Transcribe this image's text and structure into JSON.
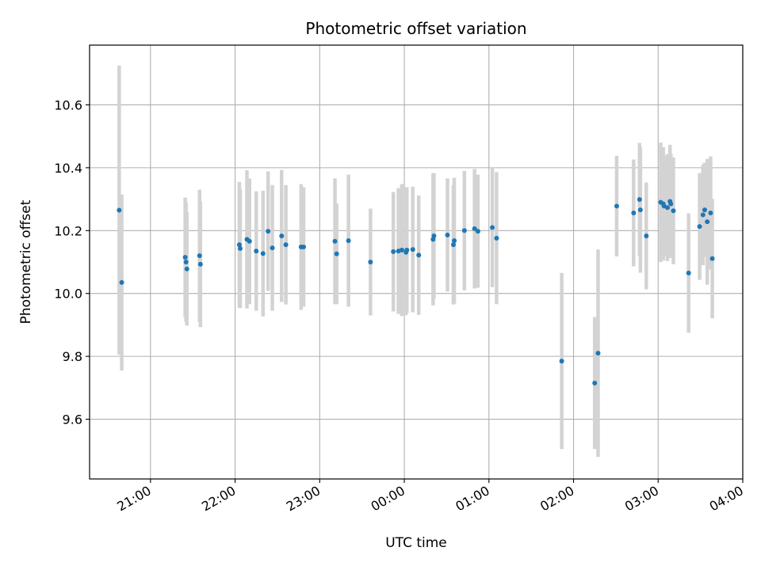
{
  "chart_data": {
    "type": "scatter",
    "title": "Photometric offset variation",
    "xlabel": "UTC time",
    "ylabel": "Photometric offset",
    "x_ticks": [
      "21:00",
      "22:00",
      "23:00",
      "00:00",
      "01:00",
      "02:00",
      "03:00",
      "04:00"
    ],
    "x_tick_hours": [
      21,
      22,
      23,
      24,
      25,
      26,
      27,
      28
    ],
    "xlim_hours": [
      20.28,
      28.0
    ],
    "y_ticks": [
      "9.6",
      "9.8",
      "10.0",
      "10.2",
      "10.4",
      "10.6"
    ],
    "y_tick_values": [
      9.6,
      9.8,
      10.0,
      10.2,
      10.4,
      10.6
    ],
    "ylim": [
      9.41,
      10.79
    ],
    "grid": true,
    "point_color": "#1f77b4",
    "errorbar_color": "#d3d3d3",
    "x_hours": [
      20.63,
      20.66,
      21.41,
      21.42,
      21.43,
      21.58,
      21.59,
      22.05,
      22.06,
      22.14,
      22.17,
      22.25,
      22.33,
      22.39,
      22.44,
      22.55,
      22.6,
      22.78,
      22.81,
      23.18,
      23.2,
      23.34,
      23.6,
      23.87,
      23.93,
      23.97,
      24.02,
      24.03,
      24.1,
      24.17,
      24.34,
      24.35,
      24.51,
      24.58,
      24.59,
      24.71,
      24.83,
      24.87,
      25.04,
      25.09,
      25.86,
      26.25,
      26.29,
      26.51,
      26.71,
      26.78,
      26.79,
      26.86,
      27.03,
      27.06,
      27.07,
      27.11,
      27.14,
      27.15,
      27.18,
      27.36,
      27.49,
      27.53,
      27.55,
      27.58,
      27.62,
      27.64
    ],
    "y_values": [
      10.265,
      10.035,
      10.115,
      10.1,
      10.078,
      10.12,
      10.093,
      10.155,
      10.143,
      10.172,
      10.166,
      10.135,
      10.127,
      10.198,
      10.145,
      10.183,
      10.155,
      10.148,
      10.148,
      10.166,
      10.126,
      10.168,
      10.1,
      10.133,
      10.135,
      10.138,
      10.131,
      10.138,
      10.14,
      10.122,
      10.172,
      10.183,
      10.186,
      10.155,
      10.168,
      10.2,
      10.206,
      10.198,
      10.21,
      10.176,
      9.785,
      9.715,
      9.81,
      10.278,
      10.256,
      10.299,
      10.266,
      10.183,
      10.29,
      10.285,
      10.278,
      10.273,
      10.293,
      10.285,
      10.263,
      10.065,
      10.213,
      10.25,
      10.266,
      10.228,
      10.256,
      10.111
    ],
    "y_err": [
      0.46,
      0.28,
      0.19,
      0.19,
      0.18,
      0.21,
      0.2,
      0.2,
      0.19,
      0.22,
      0.2,
      0.19,
      0.2,
      0.19,
      0.2,
      0.21,
      0.19,
      0.2,
      0.19,
      0.2,
      0.16,
      0.21,
      0.17,
      0.19,
      0.2,
      0.21,
      0.2,
      0.2,
      0.2,
      0.19,
      0.21,
      0.2,
      0.18,
      0.19,
      0.2,
      0.19,
      0.19,
      0.18,
      0.19,
      0.21,
      0.28,
      0.21,
      0.33,
      0.16,
      0.17,
      0.18,
      0.2,
      0.17,
      0.19,
      0.18,
      0.16,
      0.17,
      0.18,
      0.16,
      0.17,
      0.19,
      0.17,
      0.16,
      0.15,
      0.2,
      0.18,
      0.19
    ]
  }
}
